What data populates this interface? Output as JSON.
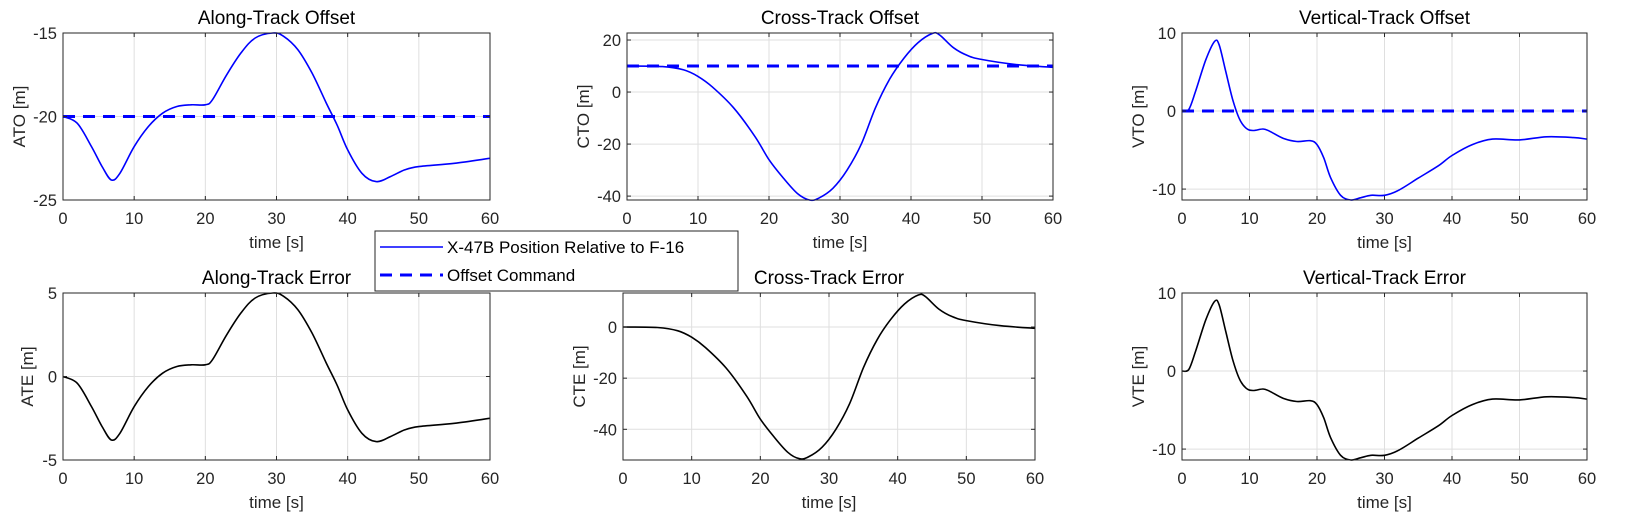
{
  "legend": {
    "entries": [
      "X-47B Position Relative to F-16",
      "Offset Command"
    ],
    "location": "center, between rows"
  },
  "colors": {
    "position": "#0000ff",
    "command": "#0000ff",
    "error": "#000000"
  },
  "chart_data": [
    {
      "type": "line",
      "title": "Along-Track Offset",
      "xlabel": "time [s]",
      "ylabel": "ATO [m]",
      "xlim": [
        0,
        60
      ],
      "ylim": [
        -25,
        -15
      ],
      "grid": true,
      "xticks": [
        0,
        10,
        20,
        30,
        40,
        50,
        60
      ],
      "yticks": [
        -25,
        -20,
        -15
      ],
      "series": [
        {
          "name": "X-47B Position Relative to F-16",
          "style": "solid",
          "color": "#0000ff",
          "x": [
            0,
            2,
            4,
            5.5,
            6.8,
            8,
            10,
            12,
            14,
            16,
            18,
            20,
            21,
            23,
            25,
            27,
            29.5,
            31,
            33,
            35,
            37,
            38.5,
            40,
            42,
            44,
            46,
            48,
            50,
            55,
            60
          ],
          "y": [
            -20,
            -20.4,
            -21.8,
            -23.0,
            -23.8,
            -23.4,
            -21.8,
            -20.6,
            -19.8,
            -19.4,
            -19.3,
            -19.3,
            -19.0,
            -17.5,
            -16.2,
            -15.3,
            -15.0,
            -15.2,
            -16.0,
            -17.4,
            -19.2,
            -20.5,
            -22.0,
            -23.4,
            -23.9,
            -23.6,
            -23.2,
            -23.0,
            -22.8,
            -22.5
          ]
        },
        {
          "name": "Offset Command",
          "style": "dashed",
          "color": "#0000ff",
          "x": [
            0,
            60
          ],
          "y": [
            -20,
            -20
          ]
        }
      ]
    },
    {
      "type": "line",
      "title": "Cross-Track Offset",
      "xlabel": "time [s]",
      "ylabel": "CTO [m]",
      "xlim": [
        0,
        60
      ],
      "ylim": [
        -41.5,
        22.7
      ],
      "grid": true,
      "xticks": [
        0,
        10,
        20,
        30,
        40,
        50,
        60
      ],
      "yticks": [
        -40,
        -20,
        0,
        20
      ],
      "series": [
        {
          "name": "X-47B Position Relative to F-16",
          "style": "solid",
          "color": "#0000ff",
          "x": [
            0,
            5,
            8,
            10,
            12,
            15,
            18,
            20,
            22,
            24,
            25.7,
            27,
            29,
            31,
            33,
            35,
            37,
            39,
            41,
            43,
            44,
            46,
            48,
            50,
            55,
            60
          ],
          "y": [
            10,
            9.8,
            8.5,
            6,
            2,
            -6,
            -17,
            -26,
            -33,
            -39,
            -41.5,
            -40.8,
            -37,
            -30,
            -20,
            -6,
            5,
            13,
            19,
            22.5,
            22,
            17,
            14,
            12.5,
            10.5,
            9.5
          ]
        },
        {
          "name": "Offset Command",
          "style": "dashed",
          "color": "#0000ff",
          "x": [
            0,
            60
          ],
          "y": [
            10,
            10
          ]
        }
      ]
    },
    {
      "type": "line",
      "title": "Vertical-Track Offset",
      "xlabel": "time [s]",
      "ylabel": "VTO [m]",
      "xlim": [
        0,
        60
      ],
      "ylim": [
        -11.4,
        10
      ],
      "grid": true,
      "xticks": [
        0,
        10,
        20,
        30,
        40,
        50,
        60
      ],
      "yticks": [
        -10,
        0,
        10
      ],
      "series": [
        {
          "name": "X-47B Position Relative to F-16",
          "style": "solid",
          "color": "#0000ff",
          "x": [
            0,
            1,
            2,
            3.5,
            4.8,
            5.5,
            6.5,
            7.5,
            8.5,
            9.5,
            10.5,
            12,
            13,
            15,
            17,
            19,
            20,
            21,
            22,
            23.5,
            25,
            26.5,
            28,
            30,
            32,
            35,
            38,
            40,
            43,
            46,
            50,
            54,
            58,
            60
          ],
          "y": [
            0,
            0.2,
            2.5,
            6.5,
            8.9,
            8.5,
            5,
            1.5,
            -1,
            -2.2,
            -2.5,
            -2.3,
            -2.6,
            -3.5,
            -3.9,
            -3.8,
            -4.3,
            -6,
            -8.5,
            -10.8,
            -11.4,
            -11.1,
            -10.8,
            -10.8,
            -10.2,
            -8.6,
            -7.0,
            -5.7,
            -4.3,
            -3.6,
            -3.7,
            -3.3,
            -3.4,
            -3.6
          ]
        },
        {
          "name": "Offset Command",
          "style": "dashed",
          "color": "#0000ff",
          "x": [
            0,
            60
          ],
          "y": [
            0,
            0
          ]
        }
      ]
    },
    {
      "type": "line",
      "title": "Along-Track Error",
      "xlabel": "time [s]",
      "ylabel": "ATE [m]",
      "xlim": [
        0,
        60
      ],
      "ylim": [
        -5,
        5
      ],
      "grid": true,
      "xticks": [
        0,
        10,
        20,
        30,
        40,
        50,
        60
      ],
      "yticks": [
        -5,
        0,
        5
      ],
      "series": [
        {
          "style": "solid",
          "color": "#000000",
          "x": [
            0,
            2,
            4,
            5.5,
            6.8,
            8,
            10,
            12,
            14,
            16,
            18,
            20,
            21,
            23,
            25,
            27,
            29.5,
            31,
            33,
            35,
            37,
            38.5,
            40,
            42,
            44,
            46,
            48,
            50,
            55,
            60
          ],
          "y": [
            0,
            -0.4,
            -1.8,
            -3.0,
            -3.8,
            -3.4,
            -1.8,
            -0.6,
            0.2,
            0.6,
            0.7,
            0.7,
            1.0,
            2.5,
            3.8,
            4.7,
            5.0,
            4.8,
            4.0,
            2.6,
            0.8,
            -0.5,
            -2.0,
            -3.4,
            -3.9,
            -3.6,
            -3.2,
            -3.0,
            -2.8,
            -2.5
          ]
        }
      ]
    },
    {
      "type": "line",
      "title": "Cross-Track Error",
      "xlabel": "time [s]",
      "ylabel": "CTE [m]",
      "xlim": [
        0,
        60
      ],
      "ylim": [
        -52,
        13.3
      ],
      "grid": true,
      "xticks": [
        0,
        10,
        20,
        30,
        40,
        50,
        60
      ],
      "yticks": [
        -40,
        -20,
        0
      ],
      "series": [
        {
          "style": "solid",
          "color": "#000000",
          "x": [
            0,
            5,
            8,
            10,
            12,
            15,
            18,
            20,
            22,
            24,
            25.7,
            27,
            29,
            31,
            33,
            35,
            37,
            39,
            41,
            43,
            44,
            46,
            48,
            50,
            55,
            60
          ],
          "y": [
            0,
            -0.2,
            -1.5,
            -4,
            -8,
            -16,
            -27,
            -36,
            -43,
            -49,
            -51.5,
            -50.8,
            -47,
            -40,
            -30,
            -16,
            -5,
            3,
            9,
            12.5,
            12,
            7,
            4,
            2.5,
            0.5,
            -0.5
          ]
        }
      ]
    },
    {
      "type": "line",
      "title": "Vertical-Track Error",
      "xlabel": "time [s]",
      "ylabel": "VTE [m]",
      "xlim": [
        0,
        60
      ],
      "ylim": [
        -11.4,
        10
      ],
      "grid": true,
      "xticks": [
        0,
        10,
        20,
        30,
        40,
        50,
        60
      ],
      "yticks": [
        -10,
        0,
        10
      ],
      "series": [
        {
          "style": "solid",
          "color": "#000000",
          "x": [
            0,
            1,
            2,
            3.5,
            4.8,
            5.5,
            6.5,
            7.5,
            8.5,
            9.5,
            10.5,
            12,
            13,
            15,
            17,
            19,
            20,
            21,
            22,
            23.5,
            25,
            26.5,
            28,
            30,
            32,
            35,
            38,
            40,
            43,
            46,
            50,
            54,
            58,
            60
          ],
          "y": [
            0,
            0.2,
            2.5,
            6.5,
            8.9,
            8.5,
            5,
            1.5,
            -1,
            -2.2,
            -2.5,
            -2.3,
            -2.6,
            -3.5,
            -3.9,
            -3.8,
            -4.3,
            -6,
            -8.5,
            -10.8,
            -11.4,
            -11.1,
            -10.8,
            -10.8,
            -10.2,
            -8.6,
            -7.0,
            -5.7,
            -4.3,
            -3.6,
            -3.7,
            -3.3,
            -3.4,
            -3.6
          ]
        }
      ]
    }
  ]
}
